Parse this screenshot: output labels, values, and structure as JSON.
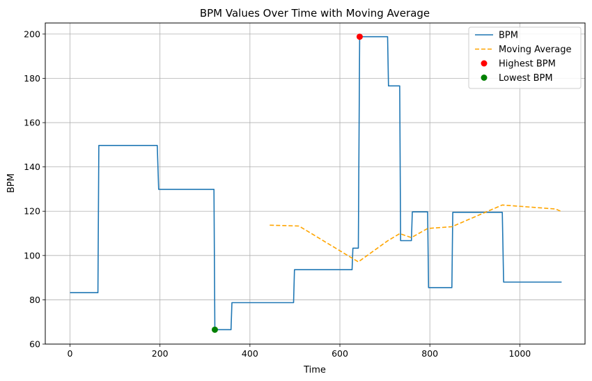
{
  "chart_data": {
    "type": "line",
    "title": "BPM Values Over Time with Moving Average",
    "xlabel": "Time",
    "ylabel": "BPM",
    "xlim": [
      -55,
      1145
    ],
    "ylim": [
      60,
      205
    ],
    "x_ticks": [
      0,
      200,
      400,
      600,
      800,
      1000
    ],
    "y_ticks": [
      60,
      80,
      100,
      120,
      140,
      160,
      180,
      200
    ],
    "grid": true,
    "legend_position": "top-right",
    "series": [
      {
        "name": "BPM",
        "style": "step",
        "color": "#1f77b4",
        "points": [
          [
            0,
            83.2
          ],
          [
            62,
            83.2
          ],
          [
            64,
            149.7
          ],
          [
            194,
            149.7
          ],
          [
            197,
            129.9
          ],
          [
            320,
            129.9
          ],
          [
            322,
            66.5
          ],
          [
            358,
            66.5
          ],
          [
            360,
            78.7
          ],
          [
            497,
            78.7
          ],
          [
            499,
            93.6
          ],
          [
            627,
            93.6
          ],
          [
            629,
            103.3
          ],
          [
            641,
            103.3
          ],
          [
            644,
            198.8
          ],
          [
            706,
            198.8
          ],
          [
            708,
            176.6
          ],
          [
            733,
            176.6
          ],
          [
            735,
            106.7
          ],
          [
            759,
            106.7
          ],
          [
            761,
            119.7
          ],
          [
            795,
            119.7
          ],
          [
            797,
            85.5
          ],
          [
            849,
            85.5
          ],
          [
            851,
            119.5
          ],
          [
            961,
            119.5
          ],
          [
            964,
            88.0
          ],
          [
            1093,
            88.0
          ]
        ]
      },
      {
        "name": "Moving Average",
        "style": "dashed",
        "color": "#ffa500",
        "points": [
          [
            444,
            113.7
          ],
          [
            509,
            113.3
          ],
          [
            641,
            97.1
          ],
          [
            706,
            106.6
          ],
          [
            733,
            109.9
          ],
          [
            759,
            108.1
          ],
          [
            795,
            112.2
          ],
          [
            849,
            113.0
          ],
          [
            961,
            122.8
          ],
          [
            1080,
            121.0
          ],
          [
            1093,
            119.8
          ]
        ]
      }
    ],
    "markers": [
      {
        "name": "Highest BPM",
        "x": 644,
        "y": 198.8,
        "color": "#ff0000"
      },
      {
        "name": "Lowest BPM",
        "x": 322,
        "y": 66.5,
        "color": "#008000"
      }
    ]
  }
}
